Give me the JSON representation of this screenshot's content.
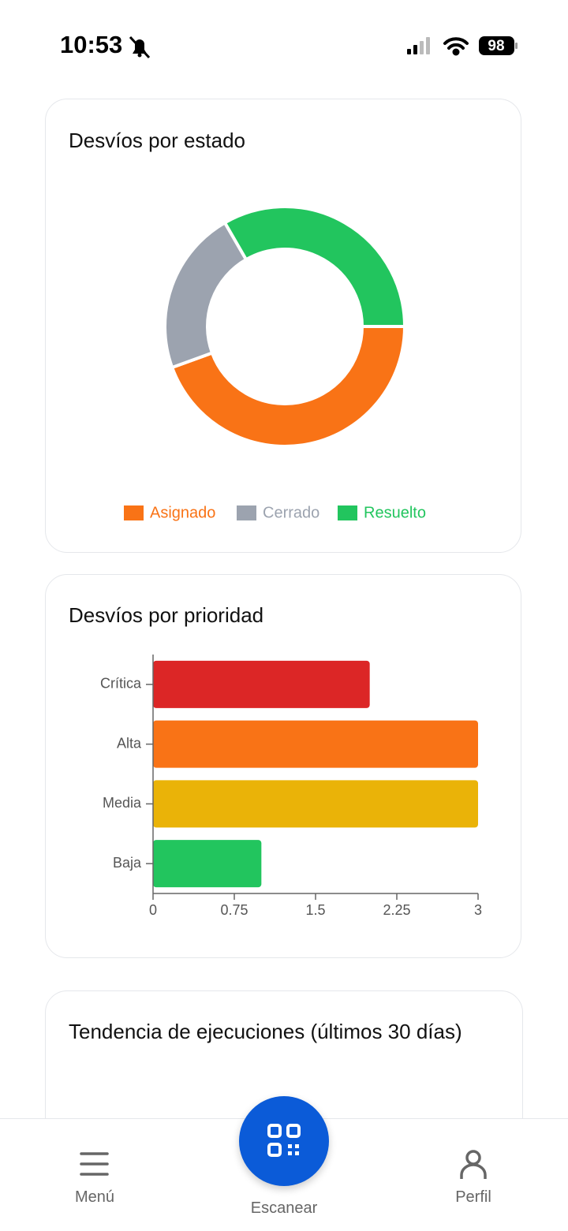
{
  "status_bar": {
    "time": "10:53",
    "battery": "98"
  },
  "chart_data": [
    {
      "type": "pie",
      "title": "Desvíos por estado",
      "donut": true,
      "categories": [
        "Asignado",
        "Cerrado",
        "Resuelto"
      ],
      "values": [
        4,
        2,
        3
      ],
      "colors": [
        "#f97316",
        "#9ca3af",
        "#22c55e"
      ]
    },
    {
      "type": "bar",
      "orientation": "horizontal",
      "title": "Desvíos por prioridad",
      "categories": [
        "Crítica",
        "Alta",
        "Media",
        "Baja"
      ],
      "values": [
        2,
        3,
        3,
        1
      ],
      "colors": [
        "#dc2626",
        "#f97316",
        "#eab308",
        "#22c55e"
      ],
      "xlim": [
        0,
        3
      ],
      "xticks": [
        0,
        0.75,
        1.5,
        2.25,
        3
      ]
    }
  ],
  "trend_card": {
    "title": "Tendencia de ejecuciones (últimos 30 días)"
  },
  "nav": {
    "menu": "Menú",
    "scan": "Escanear",
    "profile": "Perfil"
  }
}
